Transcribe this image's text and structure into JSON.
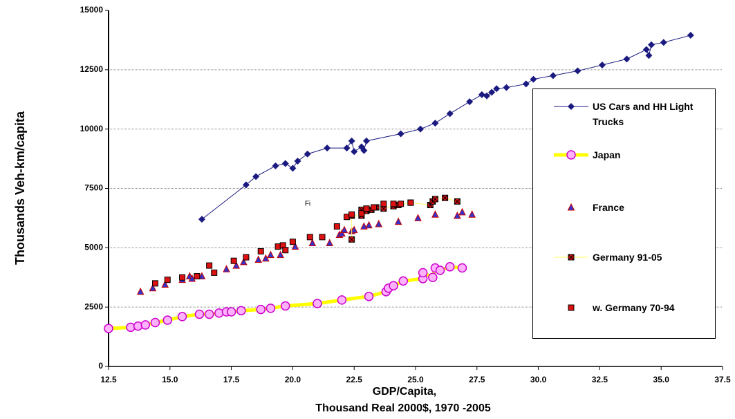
{
  "chart_data": {
    "type": "scatter",
    "ylabel": "Thousands Veh-km/capita",
    "xlabel": [
      "GDP/Capita,",
      "Thousand Real 2000$, 1970 -2005"
    ],
    "annotation": "Fi",
    "xlim": [
      12.5,
      37.5
    ],
    "ylim": [
      0,
      15000
    ],
    "xticks": [
      12.5,
      {
        "value": 15,
        "label": "15.0"
      },
      17.5,
      {
        "value": 20,
        "label": "20.0"
      },
      22.5,
      {
        "value": 25,
        "label": "25.0"
      },
      27.5,
      {
        "value": 30,
        "label": "30.0"
      },
      32.5,
      {
        "value": 35,
        "label": "35.0"
      },
      37.5
    ],
    "yticks": [
      0,
      2500,
      5000,
      7500,
      10000,
      12500,
      15000
    ],
    "grid": true,
    "legend": "right",
    "series": [
      {
        "name": "US Cars and HH Light Trucks",
        "color": "#1a1a80",
        "marker": "diamond",
        "line": 1,
        "x": [
          16.3,
          18.1,
          18.5,
          19.3,
          19.7,
          20.0,
          20.2,
          20.6,
          21.4,
          22.2,
          22.4,
          22.5,
          22.8,
          22.9,
          23.0,
          24.4,
          25.2,
          25.8,
          26.4,
          27.2,
          27.7,
          27.9,
          28.1,
          28.3,
          28.7,
          29.5,
          29.8,
          30.6,
          31.6,
          32.6,
          33.6,
          34.4,
          34.5,
          34.6,
          35.1,
          36.2
        ],
        "values": [
          6200,
          7650,
          8000,
          8450,
          8550,
          8350,
          8650,
          8950,
          9200,
          9200,
          9500,
          9050,
          9250,
          9100,
          9500,
          9800,
          10000,
          10250,
          10650,
          11150,
          11450,
          11400,
          11550,
          11700,
          11750,
          11900,
          12100,
          12250,
          12450,
          12700,
          12950,
          13350,
          13100,
          13550,
          13650,
          13950
        ]
      },
      {
        "name": "Japan",
        "color": "#ffff00",
        "marker": "circle",
        "line": 5,
        "x": [
          12.5,
          13.4,
          13.7,
          14.0,
          14.4,
          14.9,
          15.5,
          16.2,
          16.6,
          17.0,
          17.3,
          17.5,
          17.9,
          18.7,
          19.1,
          19.7,
          21.0,
          22.0,
          23.1,
          23.8,
          23.9,
          24.1,
          24.5,
          25.3,
          25.3,
          25.7,
          25.8,
          26.0,
          26.4,
          26.9
        ],
        "values": [
          1600,
          1650,
          1700,
          1750,
          1850,
          1950,
          2100,
          2200,
          2200,
          2250,
          2300,
          2300,
          2350,
          2400,
          2450,
          2550,
          2650,
          2800,
          2950,
          3150,
          3300,
          3400,
          3600,
          3700,
          3950,
          3750,
          4150,
          4050,
          4200,
          4150
        ]
      },
      {
        "name": "France",
        "color": "#3333cc",
        "marker": "triangle",
        "line": 0,
        "x": [
          13.8,
          14.3,
          14.8,
          15.5,
          15.8,
          15.9,
          16.3,
          17.3,
          17.7,
          18.0,
          18.6,
          18.9,
          19.1,
          19.5,
          20.1,
          20.8,
          21.5,
          21.9,
          22.0,
          22.1,
          22.4,
          22.5,
          22.9,
          23.1,
          23.5,
          24.3,
          25.1,
          25.8,
          26.7,
          26.9,
          27.3
        ],
        "values": [
          3150,
          3300,
          3450,
          3650,
          3800,
          3700,
          3800,
          4100,
          4250,
          4400,
          4500,
          4550,
          4700,
          4700,
          5050,
          5200,
          5200,
          5550,
          5600,
          5750,
          5700,
          5750,
          5900,
          5950,
          6000,
          6100,
          6250,
          6400,
          6350,
          6500,
          6400
        ]
      },
      {
        "name": "Germany 91-05",
        "color": "#ffff66",
        "marker": "xsquare",
        "line": 1,
        "x": [
          22.4,
          22.4,
          22.8,
          22.8,
          23.0,
          23.2,
          23.4,
          23.7,
          24.1,
          24.3,
          24.8,
          25.6,
          25.7,
          25.8,
          26.2,
          26.7
        ],
        "values": [
          5350,
          6350,
          6350,
          6600,
          6550,
          6600,
          6700,
          6650,
          6750,
          6800,
          6900,
          6800,
          6950,
          7050,
          7100,
          6950
        ]
      },
      {
        "name": "w. Germany 70-94",
        "color": "#dd1111",
        "marker": "square",
        "line": 0,
        "x": [
          14.4,
          14.9,
          15.5,
          16.1,
          16.6,
          16.8,
          17.6,
          18.1,
          18.7,
          19.4,
          19.6,
          19.7,
          20.0,
          20.7,
          21.2,
          21.8,
          22.2,
          22.4,
          22.8,
          23.0,
          23.3,
          23.7,
          24.1,
          24.4,
          24.8
        ],
        "values": [
          3500,
          3650,
          3750,
          3800,
          4250,
          3950,
          4450,
          4600,
          4850,
          5050,
          5100,
          4900,
          5250,
          5450,
          5450,
          5900,
          6300,
          6400,
          6450,
          6650,
          6700,
          6850,
          6850,
          6850,
          6900
        ]
      }
    ]
  }
}
